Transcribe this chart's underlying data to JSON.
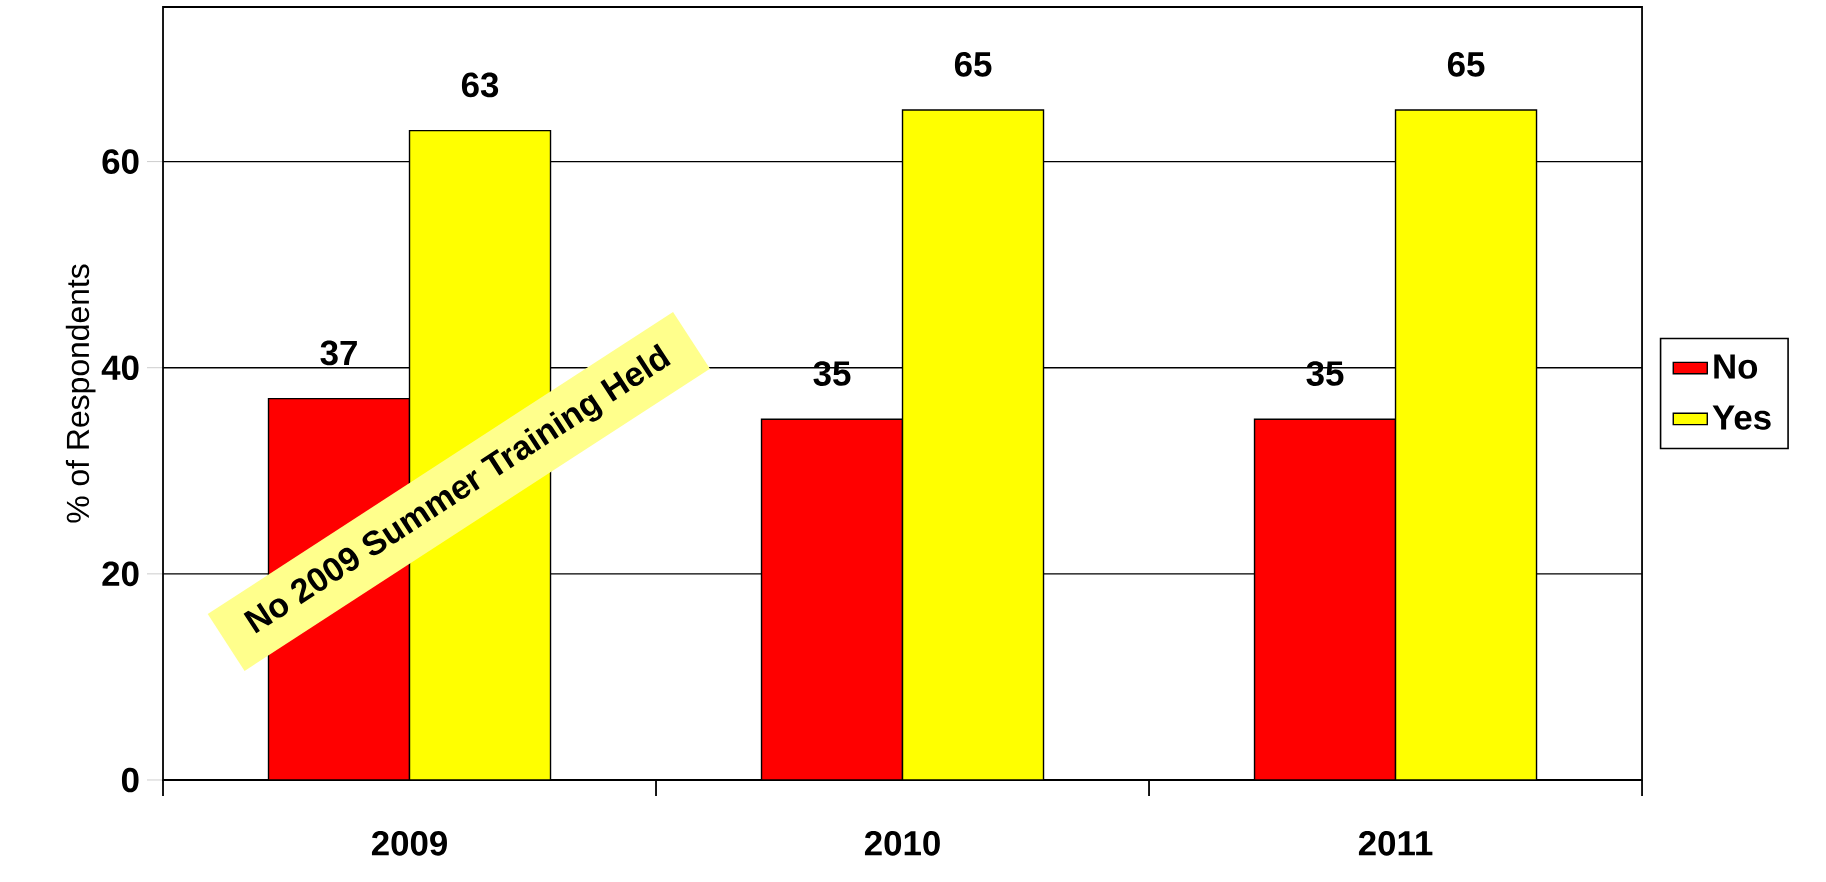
{
  "chart_data": {
    "type": "bar",
    "ylabel": "% of Respondents",
    "categories": [
      "2009",
      "2010",
      "2011"
    ],
    "series": [
      {
        "name": "No",
        "color": "#ff0000",
        "values": [
          37,
          35,
          35
        ]
      },
      {
        "name": "Yes",
        "color": "#ffff00",
        "values": [
          63,
          65,
          65
        ]
      }
    ],
    "ylim": [
      0,
      75
    ],
    "yticks": [
      0,
      20,
      40,
      60
    ],
    "grid": "y",
    "legend": "right",
    "data_labels": true,
    "annotations": [
      "No 2009 Summer Training Held"
    ]
  }
}
